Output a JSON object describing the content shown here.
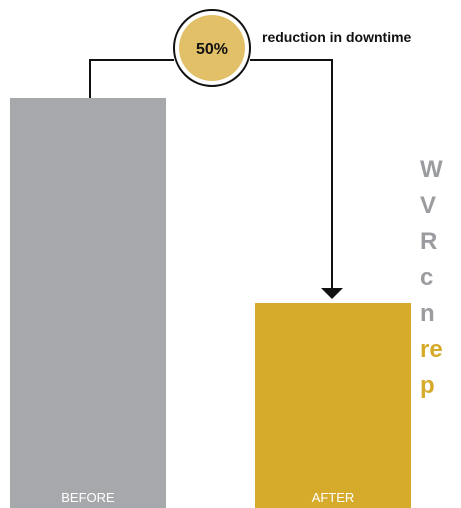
{
  "chart_data": {
    "type": "bar",
    "categories": [
      "BEFORE",
      "AFTER"
    ],
    "values": [
      100,
      50
    ],
    "callout": {
      "value_label": "50%",
      "text": "reduction in downtime"
    }
  },
  "side_text": {
    "lines": [
      {
        "text": "W",
        "highlight": false
      },
      {
        "text": "V",
        "highlight": false
      },
      {
        "text": "R",
        "highlight": false
      },
      {
        "text": "c",
        "highlight": false
      },
      {
        "text": "n",
        "highlight": false
      },
      {
        "text": "re",
        "highlight": true
      },
      {
        "text": "p",
        "highlight": true
      }
    ]
  },
  "colors": {
    "before_bar": "#a7a8ab",
    "after_bar": "#d6aa2b",
    "callout_circle": "#e2c068",
    "side_text_gray": "#9b9c9f",
    "side_text_highlight": "#d6aa2b",
    "connector": "#111111",
    "bar_label": "#ffffff"
  }
}
